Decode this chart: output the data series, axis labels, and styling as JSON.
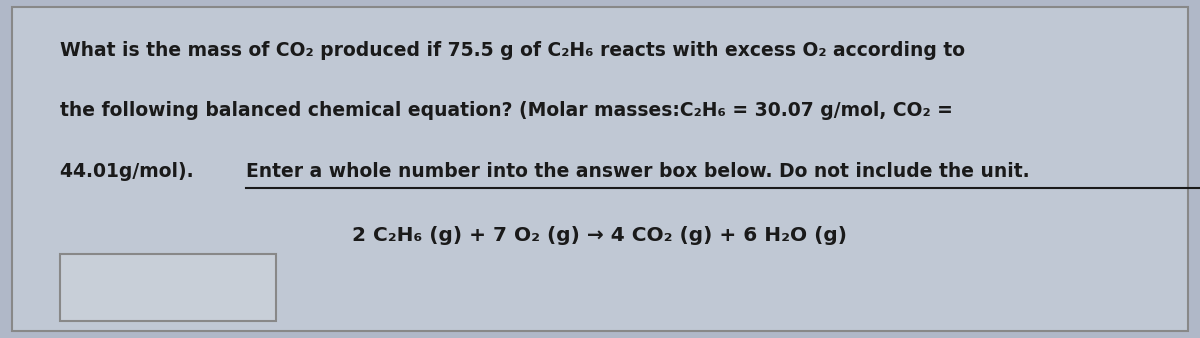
{
  "bg_color": "#b0b8c8",
  "box_bg_color": "#c0c8d4",
  "box_border_color": "#888888",
  "text_color": "#1a1a1a",
  "line1": "What is the mass of CO₂ produced if 75.5 g of C₂H₆ reacts with excess O₂ according to",
  "line2": "the following balanced chemical equation? (Molar masses:C₂H₆ = 30.07 g/mol, CO₂ =",
  "line3_normal": "44.01g/mol). ",
  "line3_underline": "Enter a whole number into the answer box below. Do not include the unit.",
  "equation": "2 C₂H₆ (g) + 7 O₂ (g) → 4 CO₂ (g) + 6 H₂O (g)",
  "fontsize_main": 13.5,
  "fontsize_eq": 14.5
}
